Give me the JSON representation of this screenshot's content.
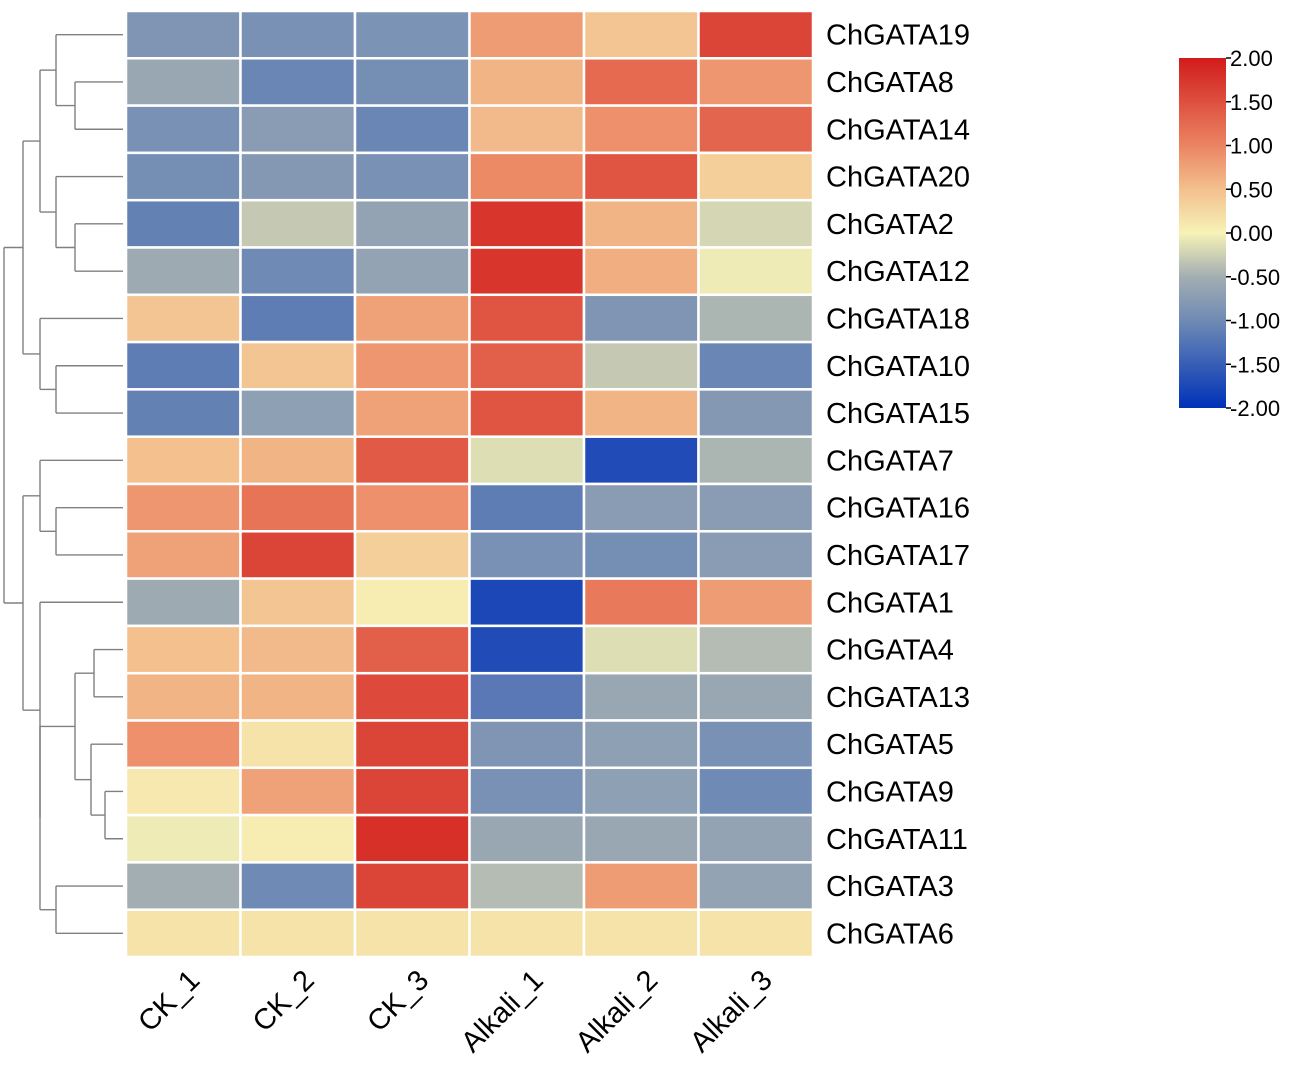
{
  "chart_data": {
    "type": "heatmap",
    "title": "",
    "columns": [
      "CK_1",
      "CK_2",
      "CK_3",
      "Alkali_1",
      "Alkali_2",
      "Alkali_3"
    ],
    "rows": [
      "ChGATA19",
      "ChGATA8",
      "ChGATA14",
      "ChGATA20",
      "ChGATA2",
      "ChGATA12",
      "ChGATA18",
      "ChGATA10",
      "ChGATA15",
      "ChGATA7",
      "ChGATA16",
      "ChGATA17",
      "ChGATA1",
      "ChGATA4",
      "ChGATA13",
      "ChGATA5",
      "ChGATA9",
      "ChGATA11",
      "ChGATA3",
      "ChGATA6"
    ],
    "values": [
      [
        -0.85,
        -0.9,
        -0.88,
        0.8,
        0.45,
        1.6
      ],
      [
        -0.6,
        -1.05,
        -0.95,
        0.6,
        1.25,
        0.85
      ],
      [
        -0.9,
        -0.75,
        -1.05,
        0.55,
        0.9,
        1.3
      ],
      [
        -0.95,
        -0.8,
        -0.9,
        0.95,
        1.45,
        0.35
      ],
      [
        -1.1,
        -0.3,
        -0.65,
        1.75,
        0.6,
        -0.2
      ],
      [
        -0.55,
        -1.0,
        -0.65,
        1.75,
        0.65,
        -0.05
      ],
      [
        0.45,
        -1.15,
        0.75,
        1.45,
        -0.85,
        -0.45
      ],
      [
        -1.15,
        0.45,
        0.85,
        1.35,
        -0.3,
        -1.05
      ],
      [
        -1.1,
        -0.7,
        0.75,
        1.45,
        0.6,
        -0.8
      ],
      [
        0.5,
        0.6,
        1.4,
        -0.15,
        -1.7,
        -0.45
      ],
      [
        0.85,
        1.15,
        0.9,
        -1.15,
        -0.75,
        -0.75
      ],
      [
        0.75,
        1.6,
        0.35,
        -0.9,
        -0.95,
        -0.75
      ],
      [
        -0.55,
        0.45,
        0.05,
        -1.75,
        1.1,
        0.8
      ],
      [
        0.5,
        0.55,
        1.35,
        -1.7,
        -0.15,
        -0.4
      ],
      [
        0.6,
        0.6,
        1.55,
        -1.2,
        -0.6,
        -0.6
      ],
      [
        0.9,
        0.15,
        1.6,
        -0.85,
        -0.7,
        -0.9
      ],
      [
        0.1,
        0.75,
        1.6,
        -0.9,
        -0.7,
        -1.0
      ],
      [
        -0.05,
        0.05,
        1.8,
        -0.6,
        -0.6,
        -0.65
      ],
      [
        -0.5,
        -1.0,
        1.6,
        -0.4,
        0.8,
        -0.65
      ],
      [
        0.15,
        0.15,
        0.15,
        0.15,
        0.15,
        0.15
      ]
    ],
    "color_scale": {
      "min": -2.0,
      "max": 2.0,
      "stops": [
        {
          "value": -2.0,
          "color": "#0032b8"
        },
        {
          "value": -1.0,
          "color": "#6f8ab4"
        },
        {
          "value": -0.5,
          "color": "#a3aeb2"
        },
        {
          "value": 0.0,
          "color": "#f7f2b6"
        },
        {
          "value": 0.5,
          "color": "#f3c08e"
        },
        {
          "value": 1.0,
          "color": "#eb8462"
        },
        {
          "value": 2.0,
          "color": "#d11b1b"
        }
      ],
      "tick_labels": [
        "2.00",
        "1.50",
        "1.00",
        "0.50",
        "0.00",
        "-0.50",
        "-1.00",
        "-1.50",
        "-2.00"
      ]
    },
    "legend_position": "right",
    "row_dendrogram": "left"
  }
}
